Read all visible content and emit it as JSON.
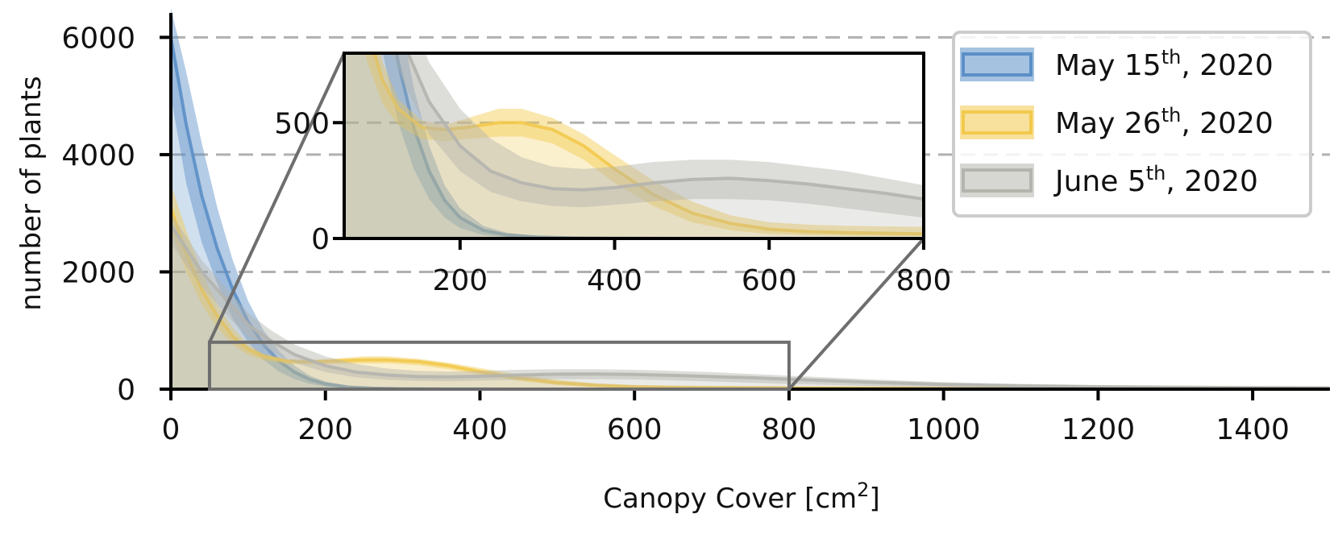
{
  "chart_data": {
    "type": "area",
    "xlabel": "Canopy Cover [cm",
    "xlabel_sup": "2",
    "xlabel_tail": "]",
    "ylabel": "number of plants",
    "xlim": [
      0,
      1500
    ],
    "ylim": [
      0,
      6500
    ],
    "xticks": [
      0,
      200,
      400,
      600,
      800,
      1000,
      1200,
      1400
    ],
    "yticks": [
      0,
      2000,
      4000,
      6000
    ],
    "grid": "horizontal dashed at y ticks",
    "legend_position": "top-right",
    "series": [
      {
        "name": "May 15",
        "name_sup": "th",
        "name_tail": ", 2020",
        "color": "#5b8fc7",
        "x": [
          0,
          20,
          40,
          60,
          80,
          100,
          120,
          140,
          160,
          180,
          200,
          230,
          260,
          300,
          350,
          400,
          500,
          700,
          1000,
          1500
        ],
        "upper": [
          6500,
          5400,
          4200,
          3100,
          2200,
          1500,
          1000,
          650,
          400,
          230,
          130,
          55,
          25,
          10,
          4,
          2,
          1,
          0,
          0,
          0
        ],
        "center": [
          6000,
          4500,
          3300,
          2400,
          1700,
          1150,
          760,
          480,
          290,
          165,
          90,
          35,
          15,
          6,
          2,
          1,
          0,
          0,
          0,
          0
        ],
        "lower": [
          5000,
          3500,
          2500,
          1800,
          1200,
          800,
          500,
          300,
          170,
          90,
          45,
          15,
          5,
          2,
          0,
          0,
          0,
          0,
          0,
          0
        ]
      },
      {
        "name": "May 26",
        "name_sup": "th",
        "name_tail": ", 2020",
        "color": "#f2c94c",
        "x": [
          0,
          20,
          40,
          60,
          80,
          100,
          120,
          150,
          180,
          210,
          250,
          280,
          320,
          360,
          400,
          450,
          500,
          550,
          600,
          650,
          700,
          800,
          1000,
          1500
        ],
        "upper": [
          3500,
          2700,
          2000,
          1450,
          1050,
          760,
          600,
          510,
          490,
          520,
          560,
          560,
          520,
          450,
          360,
          250,
          160,
          100,
          70,
          60,
          55,
          50,
          40,
          30
        ],
        "center": [
          3100,
          2300,
          1700,
          1250,
          900,
          680,
          560,
          480,
          470,
          480,
          500,
          500,
          470,
          400,
          300,
          190,
          110,
          65,
          40,
          30,
          25,
          20,
          15,
          10
        ],
        "lower": [
          2700,
          2000,
          1450,
          1050,
          760,
          580,
          490,
          430,
          420,
          430,
          440,
          440,
          410,
          340,
          240,
          140,
          70,
          35,
          20,
          15,
          12,
          10,
          5,
          0
        ]
      },
      {
        "name": "June 5",
        "name_sup": "th",
        "name_tail": ", 2020",
        "color": "#b4b4ae",
        "x": [
          0,
          20,
          40,
          60,
          80,
          100,
          130,
          160,
          200,
          240,
          280,
          320,
          360,
          400,
          450,
          500,
          550,
          600,
          650,
          700,
          750,
          800,
          900,
          1000,
          1100,
          1200,
          1300,
          1400,
          1500
        ],
        "upper": [
          3000,
          2600,
          2200,
          1900,
          1600,
          1300,
          1000,
          760,
          560,
          430,
          350,
          310,
          300,
          310,
          330,
          340,
          340,
          330,
          310,
          290,
          260,
          230,
          170,
          120,
          90,
          70,
          60,
          55,
          50
        ],
        "center": [
          2800,
          2400,
          2000,
          1700,
          1400,
          1100,
          820,
          590,
          400,
          290,
          240,
          215,
          210,
          220,
          240,
          255,
          260,
          250,
          235,
          215,
          195,
          170,
          120,
          80,
          55,
          40,
          30,
          25,
          20
        ],
        "lower": [
          2500,
          2100,
          1750,
          1450,
          1150,
          900,
          650,
          450,
          290,
          200,
          160,
          140,
          135,
          145,
          160,
          170,
          170,
          165,
          150,
          130,
          110,
          90,
          55,
          30,
          15,
          8,
          5,
          3,
          2
        ]
      }
    ],
    "inset": {
      "xlim": [
        50,
        800
      ],
      "ylim": [
        0,
        800
      ],
      "xticks": [
        200,
        400,
        600,
        800
      ],
      "yticks": [
        0,
        500
      ],
      "zoom_box": {
        "x": [
          50,
          800
        ],
        "y": [
          0,
          800
        ]
      }
    }
  }
}
